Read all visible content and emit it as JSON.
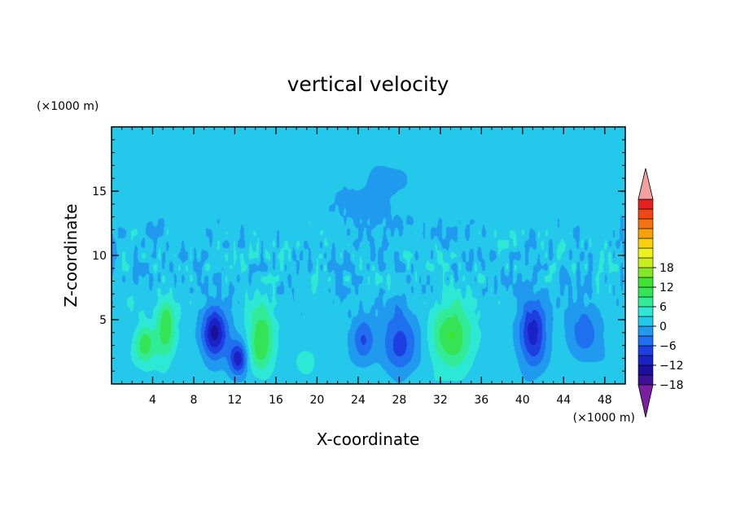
{
  "chart_data": {
    "type": "heatmap",
    "title": "vertical velocity",
    "xlabel": "X-coordinate",
    "ylabel": "Z-coordinate",
    "x_units": "(×1000 m)",
    "y_units": "(×1000 m)",
    "xlim": [
      0,
      50
    ],
    "ylim": [
      0,
      20
    ],
    "xticks": [
      4,
      8,
      12,
      16,
      20,
      24,
      28,
      32,
      36,
      40,
      44,
      48
    ],
    "yticks": [
      5,
      10,
      15
    ],
    "colorbar": {
      "min": -21,
      "max": 21,
      "step": 3,
      "tick_values": [
        18,
        12,
        6,
        0,
        -6,
        -12,
        -18
      ],
      "tick_labels": [
        "18",
        "12",
        "6",
        "0",
        "−6",
        "−12",
        "−18"
      ],
      "extend": "both",
      "colors": [
        "#7b1fa2",
        "#3a1296",
        "#1b0f9c",
        "#1a22c4",
        "#1e3fe0",
        "#1f6fee",
        "#1f9aee",
        "#24c8ea",
        "#2ee8d6",
        "#32eb96",
        "#34e454",
        "#3fe332",
        "#86e628",
        "#c8ee1e",
        "#eef21c",
        "#f8d010",
        "#f7a00c",
        "#f37312",
        "#ef4716",
        "#e52020",
        "#f4a0a0"
      ]
    },
    "features": [
      {
        "x": 3.2,
        "z": 3.2,
        "sx": 1.0,
        "sz": 1.5,
        "value": 10
      },
      {
        "x": 5.2,
        "z": 4.3,
        "sx": 1.0,
        "sz": 2.4,
        "value": 10
      },
      {
        "x": 10.0,
        "z": 4.0,
        "sx": 1.2,
        "sz": 2.0,
        "value": -15
      },
      {
        "x": 12.3,
        "z": 2.0,
        "sx": 0.9,
        "sz": 1.3,
        "value": -13
      },
      {
        "x": 14.5,
        "z": 3.6,
        "sx": 1.3,
        "sz": 2.6,
        "value": 11
      },
      {
        "x": 18.8,
        "z": 1.8,
        "sx": 1.0,
        "sz": 1.0,
        "value": 4
      },
      {
        "x": 24.5,
        "z": 3.5,
        "sx": 1.0,
        "sz": 1.5,
        "value": -7
      },
      {
        "x": 28.0,
        "z": 3.5,
        "sx": 1.6,
        "sz": 2.2,
        "value": -9
      },
      {
        "x": 33.0,
        "z": 3.8,
        "sx": 2.0,
        "sz": 2.6,
        "value": 11
      },
      {
        "x": 41.0,
        "z": 4.0,
        "sx": 1.3,
        "sz": 2.6,
        "value": -12
      },
      {
        "x": 46.0,
        "z": 4.0,
        "sx": 1.6,
        "sz": 2.0,
        "value": -7
      },
      {
        "x": 26.0,
        "z": 14.0,
        "sx": 3.5,
        "sz": 3.0,
        "value": -2
      }
    ]
  }
}
